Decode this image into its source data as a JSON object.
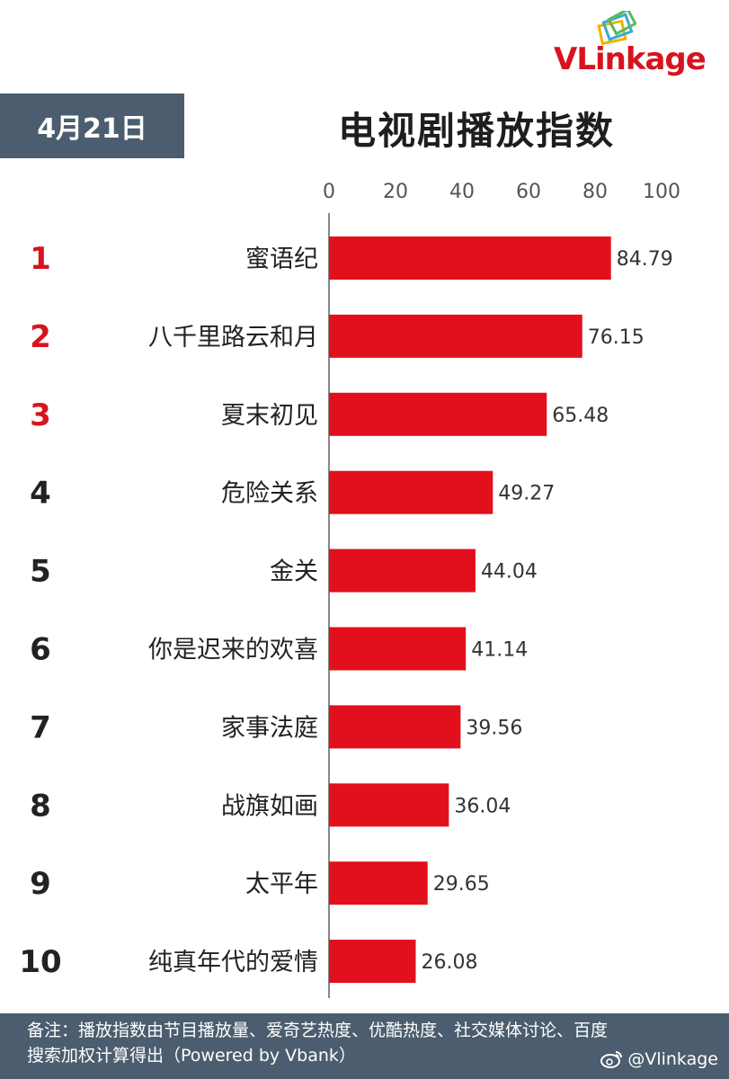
{
  "header": {
    "date": "4月21日",
    "title": "电视剧播放指数"
  },
  "logo": {
    "text_v": "V",
    "text_link": "Link",
    "text_age": "age",
    "colors": [
      "#f0b400",
      "#3aa8d8",
      "#5cb85c",
      "#d7141e"
    ]
  },
  "chart_data": {
    "type": "bar",
    "orientation": "horizontal",
    "title": "电视剧播放指数",
    "ranks": [
      "1",
      "2",
      "3",
      "4",
      "5",
      "6",
      "7",
      "8",
      "9",
      "10"
    ],
    "categories": [
      "蜜语纪",
      "八千里路云和月",
      "夏末初见",
      "危险关系",
      "金关",
      "你是迟来的欢喜",
      "家事法庭",
      "战旗如画",
      "太平年",
      "纯真年代的爱情"
    ],
    "values": [
      84.79,
      76.15,
      65.48,
      49.27,
      44.04,
      41.14,
      39.56,
      36.04,
      29.65,
      26.08
    ],
    "value_labels": [
      "84.79",
      "76.15",
      "65.48",
      "49.27",
      "44.04",
      "41.14",
      "39.56",
      "36.04",
      "29.65",
      "26.08"
    ],
    "xticks": [
      "0",
      "20",
      "40",
      "60",
      "80",
      "100"
    ],
    "xlim": [
      0,
      100
    ],
    "bar_color": "#e2101c",
    "top_rank_color": "#d7141e",
    "rank_color": "#222222",
    "axis_position": "top",
    "grid": false
  },
  "footer": {
    "note": "备注：播放指数由节目播放量、爱奇艺热度、优酷热度、社交媒体讨论、百度搜索加权计算得出（Powered by Vbank）",
    "weibo_handle": "@Vlinkage"
  }
}
